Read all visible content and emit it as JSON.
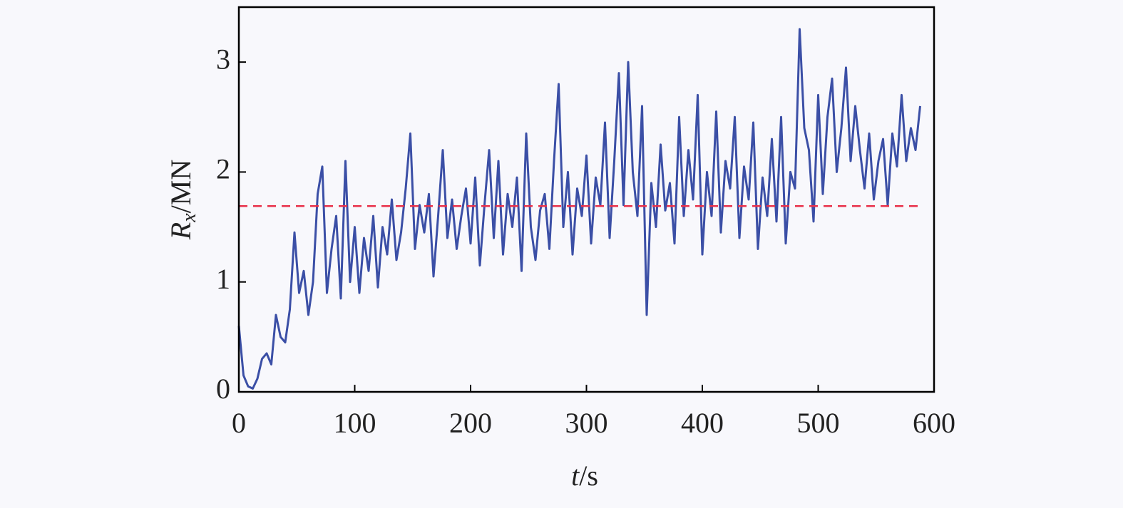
{
  "chart_data": {
    "type": "line",
    "x_label": {
      "symbol": "t",
      "unit": "/s"
    },
    "y_label": {
      "symbol": "R",
      "subscript": "x",
      "unit": "/MN"
    },
    "x": [
      0,
      4,
      8,
      12,
      16,
      20,
      24,
      28,
      32,
      36,
      40,
      44,
      48,
      52,
      56,
      60,
      64,
      68,
      72,
      76,
      80,
      84,
      88,
      92,
      96,
      100,
      104,
      108,
      112,
      116,
      120,
      124,
      128,
      132,
      136,
      140,
      144,
      148,
      152,
      156,
      160,
      164,
      168,
      172,
      176,
      180,
      184,
      188,
      192,
      196,
      200,
      204,
      208,
      212,
      216,
      220,
      224,
      228,
      232,
      236,
      240,
      244,
      248,
      252,
      256,
      260,
      264,
      268,
      272,
      276,
      280,
      284,
      288,
      292,
      296,
      300,
      304,
      308,
      312,
      316,
      320,
      324,
      328,
      332,
      336,
      340,
      344,
      348,
      352,
      356,
      360,
      364,
      368,
      372,
      376,
      380,
      384,
      388,
      392,
      396,
      400,
      404,
      408,
      412,
      416,
      420,
      424,
      428,
      432,
      436,
      440,
      444,
      448,
      452,
      456,
      460,
      464,
      468,
      472,
      476,
      480,
      484,
      488,
      492,
      496,
      500,
      504,
      508,
      512,
      516,
      520,
      524,
      528,
      532,
      536,
      540,
      544,
      548,
      552,
      556,
      560,
      564,
      568,
      572,
      576,
      580,
      584,
      588
    ],
    "series": [
      {
        "color": "#3b4fa6",
        "values": [
          0.6,
          0.15,
          0.05,
          0.03,
          0.12,
          0.3,
          0.35,
          0.25,
          0.7,
          0.5,
          0.45,
          0.75,
          1.45,
          0.9,
          1.1,
          0.7,
          1.0,
          1.8,
          2.05,
          0.9,
          1.3,
          1.6,
          0.85,
          2.1,
          1.0,
          1.5,
          0.9,
          1.4,
          1.1,
          1.6,
          0.95,
          1.5,
          1.25,
          1.75,
          1.2,
          1.45,
          1.85,
          2.35,
          1.3,
          1.7,
          1.45,
          1.8,
          1.05,
          1.6,
          2.2,
          1.4,
          1.75,
          1.3,
          1.6,
          1.85,
          1.35,
          1.95,
          1.15,
          1.7,
          2.2,
          1.4,
          2.1,
          1.25,
          1.8,
          1.5,
          1.95,
          1.1,
          2.35,
          1.5,
          1.2,
          1.65,
          1.8,
          1.3,
          2.1,
          2.8,
          1.5,
          2.0,
          1.25,
          1.85,
          1.6,
          2.15,
          1.35,
          1.95,
          1.7,
          2.45,
          1.4,
          2.1,
          2.9,
          1.7,
          3.0,
          2.0,
          1.6,
          2.6,
          0.7,
          1.9,
          1.5,
          2.25,
          1.65,
          1.9,
          1.35,
          2.5,
          1.6,
          2.2,
          1.75,
          2.7,
          1.25,
          2.0,
          1.6,
          2.55,
          1.45,
          2.1,
          1.85,
          2.5,
          1.4,
          2.05,
          1.75,
          2.45,
          1.3,
          1.95,
          1.6,
          2.3,
          1.55,
          2.5,
          1.35,
          2.0,
          1.85,
          3.3,
          2.4,
          2.2,
          1.55,
          2.7,
          1.8,
          2.5,
          2.85,
          2.0,
          2.4,
          2.95,
          2.1,
          2.6,
          2.2,
          1.85,
          2.35,
          1.75,
          2.1,
          2.3,
          1.7,
          2.35,
          2.05,
          2.7,
          2.1,
          2.4,
          2.2,
          2.6
        ]
      }
    ],
    "reference_line": {
      "value": 1.69,
      "color": "#e8314a",
      "style": "dashed"
    },
    "xlim": [
      0,
      600
    ],
    "xticks": [
      0,
      100,
      200,
      300,
      400,
      500,
      600
    ],
    "ylim": [
      0,
      3.5
    ],
    "yticks": [
      0,
      1,
      2,
      3
    ]
  }
}
